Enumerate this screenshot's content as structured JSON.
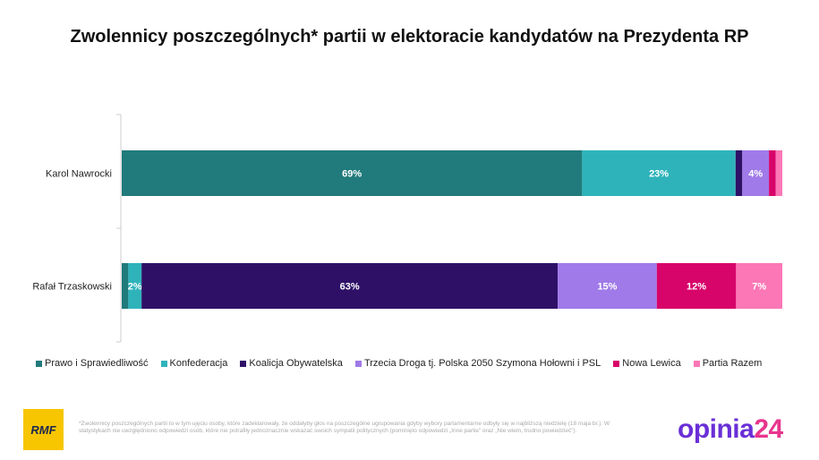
{
  "chart_data": {
    "type": "bar",
    "orientation": "horizontal-stacked-100",
    "title": "Zwolennicy poszczególnych* partii w elektoracie kandydatów na Prezydenta RP",
    "categories": [
      "Karol Nawrocki",
      "Rafał Trzaskowski"
    ],
    "series": [
      {
        "name": "Prawo i Sprawiedliwość",
        "color": "#217a7b",
        "values": [
          69,
          1
        ],
        "labels": [
          "69%",
          ""
        ]
      },
      {
        "name": "Konfederacja",
        "color": "#2fb3bb",
        "values": [
          23,
          2
        ],
        "labels": [
          "23%",
          "2%"
        ]
      },
      {
        "name": "Koalicja Obywatelska",
        "color": "#2e1167",
        "values": [
          1,
          63
        ],
        "labels": [
          "",
          "63%"
        ]
      },
      {
        "name": "Trzecia Droga tj. Polska 2050 Szymona Hołowni i PSL",
        "color": "#a07ae8",
        "values": [
          4,
          15
        ],
        "labels": [
          "4%",
          "15%"
        ]
      },
      {
        "name": "Nowa Lewica",
        "color": "#d7046a",
        "values": [
          1,
          12
        ],
        "labels": [
          "",
          "12%"
        ]
      },
      {
        "name": "Partia Razem",
        "color": "#fb77b6",
        "values": [
          1,
          7
        ],
        "labels": [
          "",
          "7%"
        ]
      }
    ],
    "xlim": [
      0,
      100
    ],
    "legend": "bottom"
  },
  "footnote": "*Zwolennicy poszczególnych partii to w tym ujęciu osoby, które zadeklarowały, że oddałyby głos na poszczególne ugrupowania gdyby wybory parlamentarne odbyły się w najbliższą niedzielę (18 maja br.). W statystykach nie uwzględniono odpowiedzi osób, które nie potrafiły jednoznacznie wskazać swoich sympatii politycznych (pominięto odpowiedzi „Inne partie” oraz „Nie wiem, trudno powiedzieć”).",
  "logos": {
    "rmf": "RMF",
    "opinia_a": "opinia",
    "opinia_b": "24"
  }
}
